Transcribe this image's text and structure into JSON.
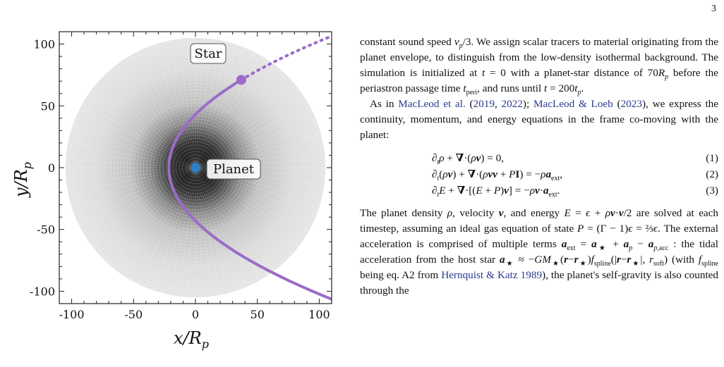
{
  "page_number": "3",
  "figure": {
    "x_axis_label": "x/R",
    "x_axis_label_sub": "p",
    "y_axis_label": "y/R",
    "y_axis_label_sub": "p",
    "x_ticks": [
      "-100",
      "-50",
      "0",
      "50",
      "100"
    ],
    "y_ticks": [
      "100",
      "50",
      "0",
      "-50",
      "-100"
    ],
    "star_label": "Star",
    "planet_label": "Planet",
    "colors": {
      "trajectory": "#9b6cc8",
      "planet": "#2e7fc2",
      "star_label": "#9b6cc8",
      "planet_label": "#2e7fc2"
    },
    "chart_data": {
      "type": "scatter",
      "xlim": [
        -110,
        110
      ],
      "ylim": [
        -110,
        110
      ],
      "grid": false,
      "star": {
        "x": 37,
        "y": 71
      },
      "planet": {
        "x": 0,
        "y": 0
      },
      "periapsis_x": -21.5,
      "mesh_radius": 105
    }
  },
  "text": {
    "p1": "constant sound speed v_p/3. We assign scalar tracers to material originating from the planet envelope, to distinguish from the low-density isothermal background. The simulation is initialized at t = 0 with a planet-star distance of 70R_p before the periastron passage time t_peri, and runs until t = 200t_p.",
    "p2_cite1": "MacLeod et al.",
    "p2_cite1_years_a": "2019",
    "p2_cite1_years_b": "2022",
    "p2_cite2": "MacLeod & Loeb",
    "p2_cite2_year": "2023",
    "p2_rest": "we express the continuity, momentum, and energy equations in the frame co-moving with the planet:",
    "eq_numbers": [
      "(1)",
      "(2)",
      "(3)"
    ],
    "p3_cite": "Hernquist & Katz",
    "p3_cite_year": "1989"
  }
}
